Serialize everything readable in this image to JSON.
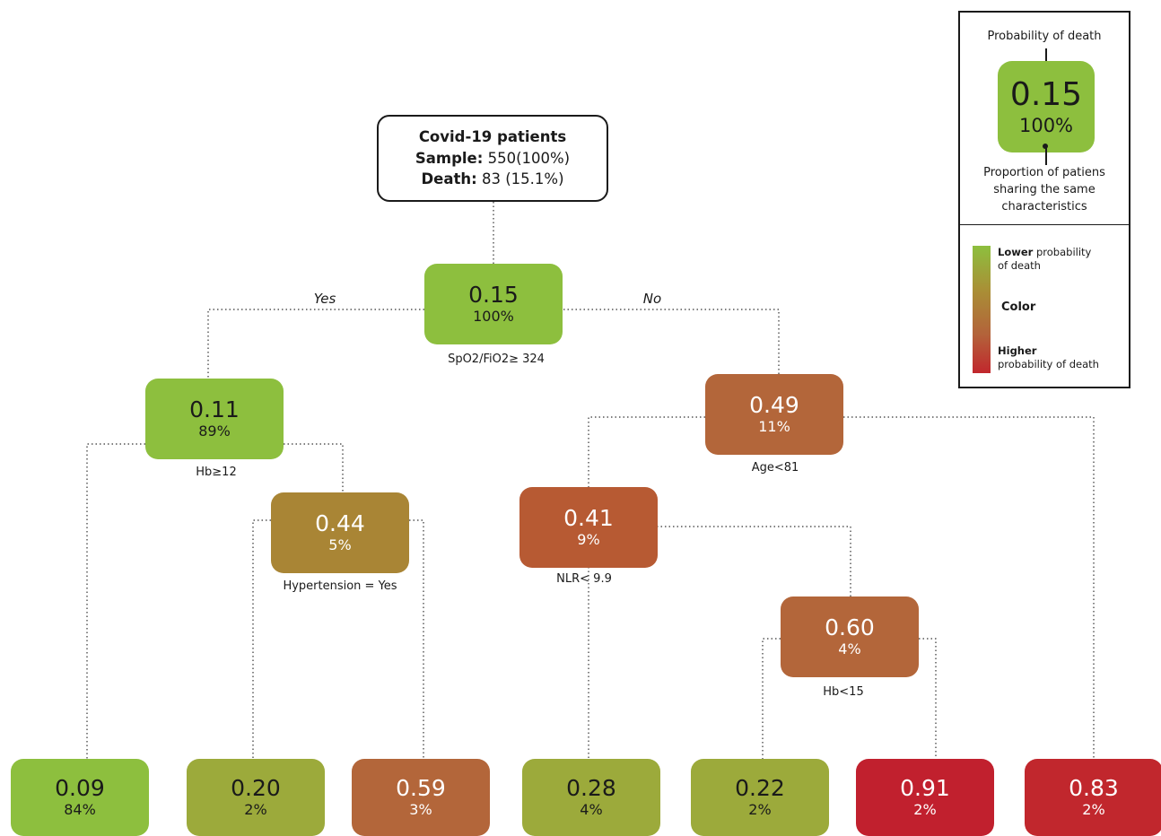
{
  "root": {
    "title": "Covid-19 patients",
    "sample_label": "Sample:",
    "sample_value": " 550(100%)",
    "death_label": "Death:",
    "death_value": " 83 (15.1%)"
  },
  "branch_labels": {
    "yes": "Yes",
    "no": "No"
  },
  "nodes": {
    "n_root": {
      "value": "0.15",
      "pct": "100%",
      "split": "SpO2/FiO2≥ 324",
      "color": "#8dbf3e"
    },
    "n_left": {
      "value": "0.11",
      "pct": "89%",
      "split": "Hb≥12",
      "color": "#8dbf3e"
    },
    "n_hyper": {
      "value": "0.44",
      "pct": "5%",
      "split": "Hypertension = Yes",
      "color": "#a98535"
    },
    "n_right": {
      "value": "0.49",
      "pct": "11%",
      "split": "Age<81",
      "color": "#b3663a"
    },
    "n_nlr": {
      "value": "0.41",
      "pct": "9%",
      "split": "NLR< 9.9",
      "color": "#b75a33"
    },
    "n_hb15": {
      "value": "0.60",
      "pct": "4%",
      "split": "Hb<15",
      "color": "#b3663a"
    },
    "leaf1": {
      "value": "0.09",
      "pct": "84%",
      "color": "#8dbf3e"
    },
    "leaf2": {
      "value": "0.20",
      "pct": "2%",
      "color": "#9caa3b"
    },
    "leaf3": {
      "value": "0.59",
      "pct": "3%",
      "color": "#b3663a"
    },
    "leaf4": {
      "value": "0.28",
      "pct": "4%",
      "color": "#9caa3b"
    },
    "leaf5": {
      "value": "0.22",
      "pct": "2%",
      "color": "#9caa3b"
    },
    "leaf6": {
      "value": "0.91",
      "pct": "2%",
      "color": "#c1202e"
    },
    "leaf7": {
      "value": "0.83",
      "pct": "2%",
      "color": "#c1272d"
    }
  },
  "legend": {
    "top_label": "Probability of death",
    "example_value": "0.15",
    "example_pct": "100%",
    "bottom_label_1": "Proportion of patiens",
    "bottom_label_2": "sharing the same",
    "bottom_label_3": "characteristics",
    "lower_bold": "Lower",
    "lower_rest": " probability",
    "lower_line2": "of death",
    "color_label": "Color",
    "higher_bold": "Higher",
    "higher_line2": "probability of death",
    "gradient_colors": [
      "#8dbf3e",
      "#a98f36",
      "#b3623a",
      "#c1272d"
    ]
  }
}
